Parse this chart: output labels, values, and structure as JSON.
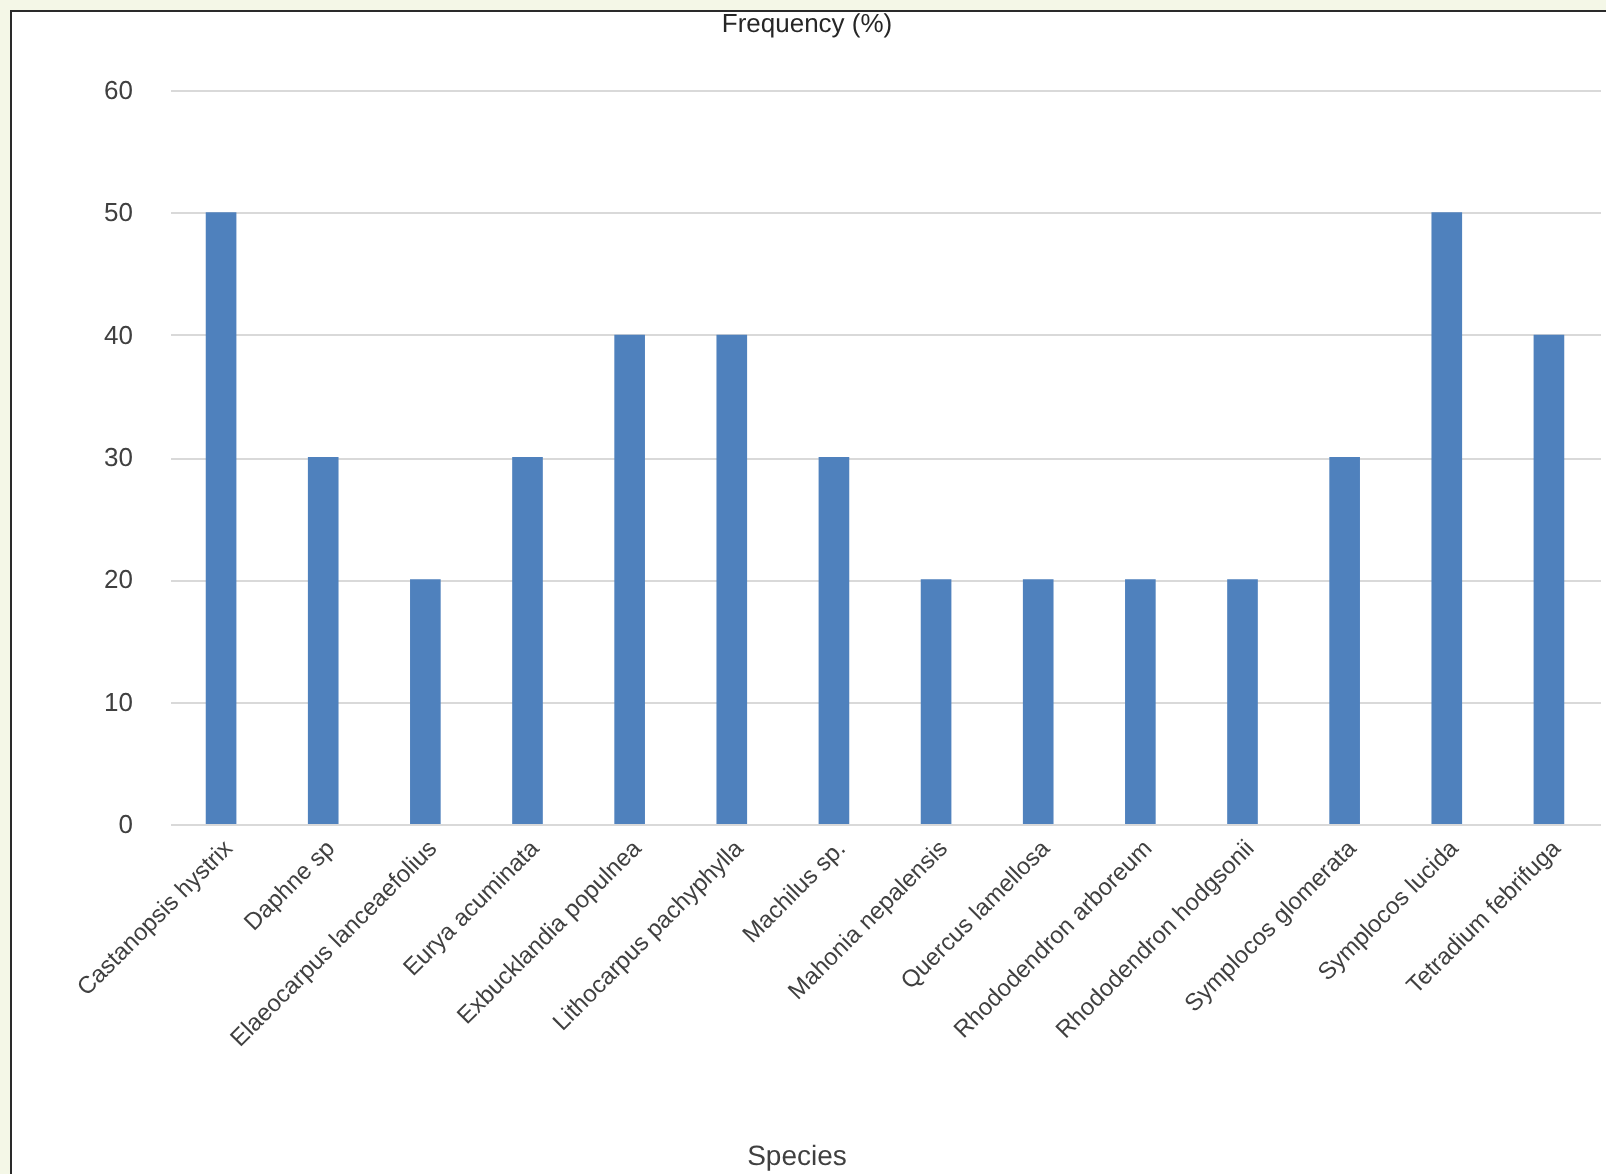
{
  "chart_data": {
    "type": "bar",
    "title": "Frequency (%)",
    "xlabel": "Species",
    "categories": [
      "Castanopsis hystrix",
      "Daphne sp",
      "Elaeocarpus lanceaefolius",
      "Eurya acuminata",
      "Exbucklandia populnea",
      "Lithocarpus pachyphylla",
      "Machilus sp.",
      "Mahonia nepalensis",
      "Quercus lamellosa",
      "Rhododendron arboreum",
      "Rhododendron hodgsonii",
      "Symplocos glomerata",
      "Symplocos lucida",
      "Tetradium febrifuga"
    ],
    "values": [
      50,
      30,
      20,
      30,
      40,
      40,
      30,
      20,
      20,
      20,
      20,
      30,
      50,
      40
    ],
    "color": "#4f81bd",
    "ylim": [
      0,
      60
    ],
    "yticks": [
      0,
      10,
      20,
      30,
      40,
      50,
      60
    ],
    "grid": "y"
  }
}
